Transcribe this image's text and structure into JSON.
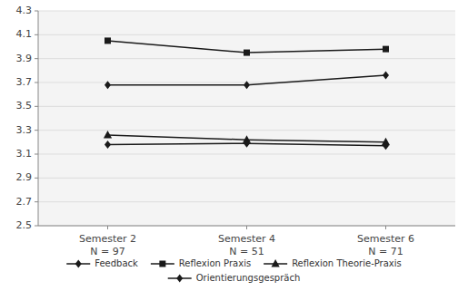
{
  "chart_data": {
    "type": "line",
    "categories": [
      "Semester 2\nN = 97",
      "Semester 4\nN = 51",
      "Semester 6\nN = 71"
    ],
    "series": [
      {
        "name": "Feedback",
        "color": "#1a1a1a",
        "marker": "diamond",
        "values": [
          3.68,
          3.68,
          3.76
        ]
      },
      {
        "name": "Reflexion Praxis",
        "color": "#1a1a1a",
        "marker": "square",
        "values": [
          4.05,
          3.95,
          3.98
        ]
      },
      {
        "name": "Reflexion Theorie-Praxis",
        "color": "#1a1a1a",
        "marker": "triangle",
        "values": [
          3.26,
          3.22,
          3.2
        ]
      },
      {
        "name": "Orientierungsgespräch",
        "color": "#1a1a1a",
        "marker": "diamond",
        "values": [
          3.18,
          3.19,
          3.17
        ]
      }
    ],
    "ylim": [
      2.5,
      4.3
    ],
    "yticks": [
      2.5,
      2.7,
      2.9,
      3.1,
      3.3,
      3.5,
      3.7,
      3.9,
      4.1,
      4.3
    ],
    "grid": true,
    "legend": "bottom"
  }
}
